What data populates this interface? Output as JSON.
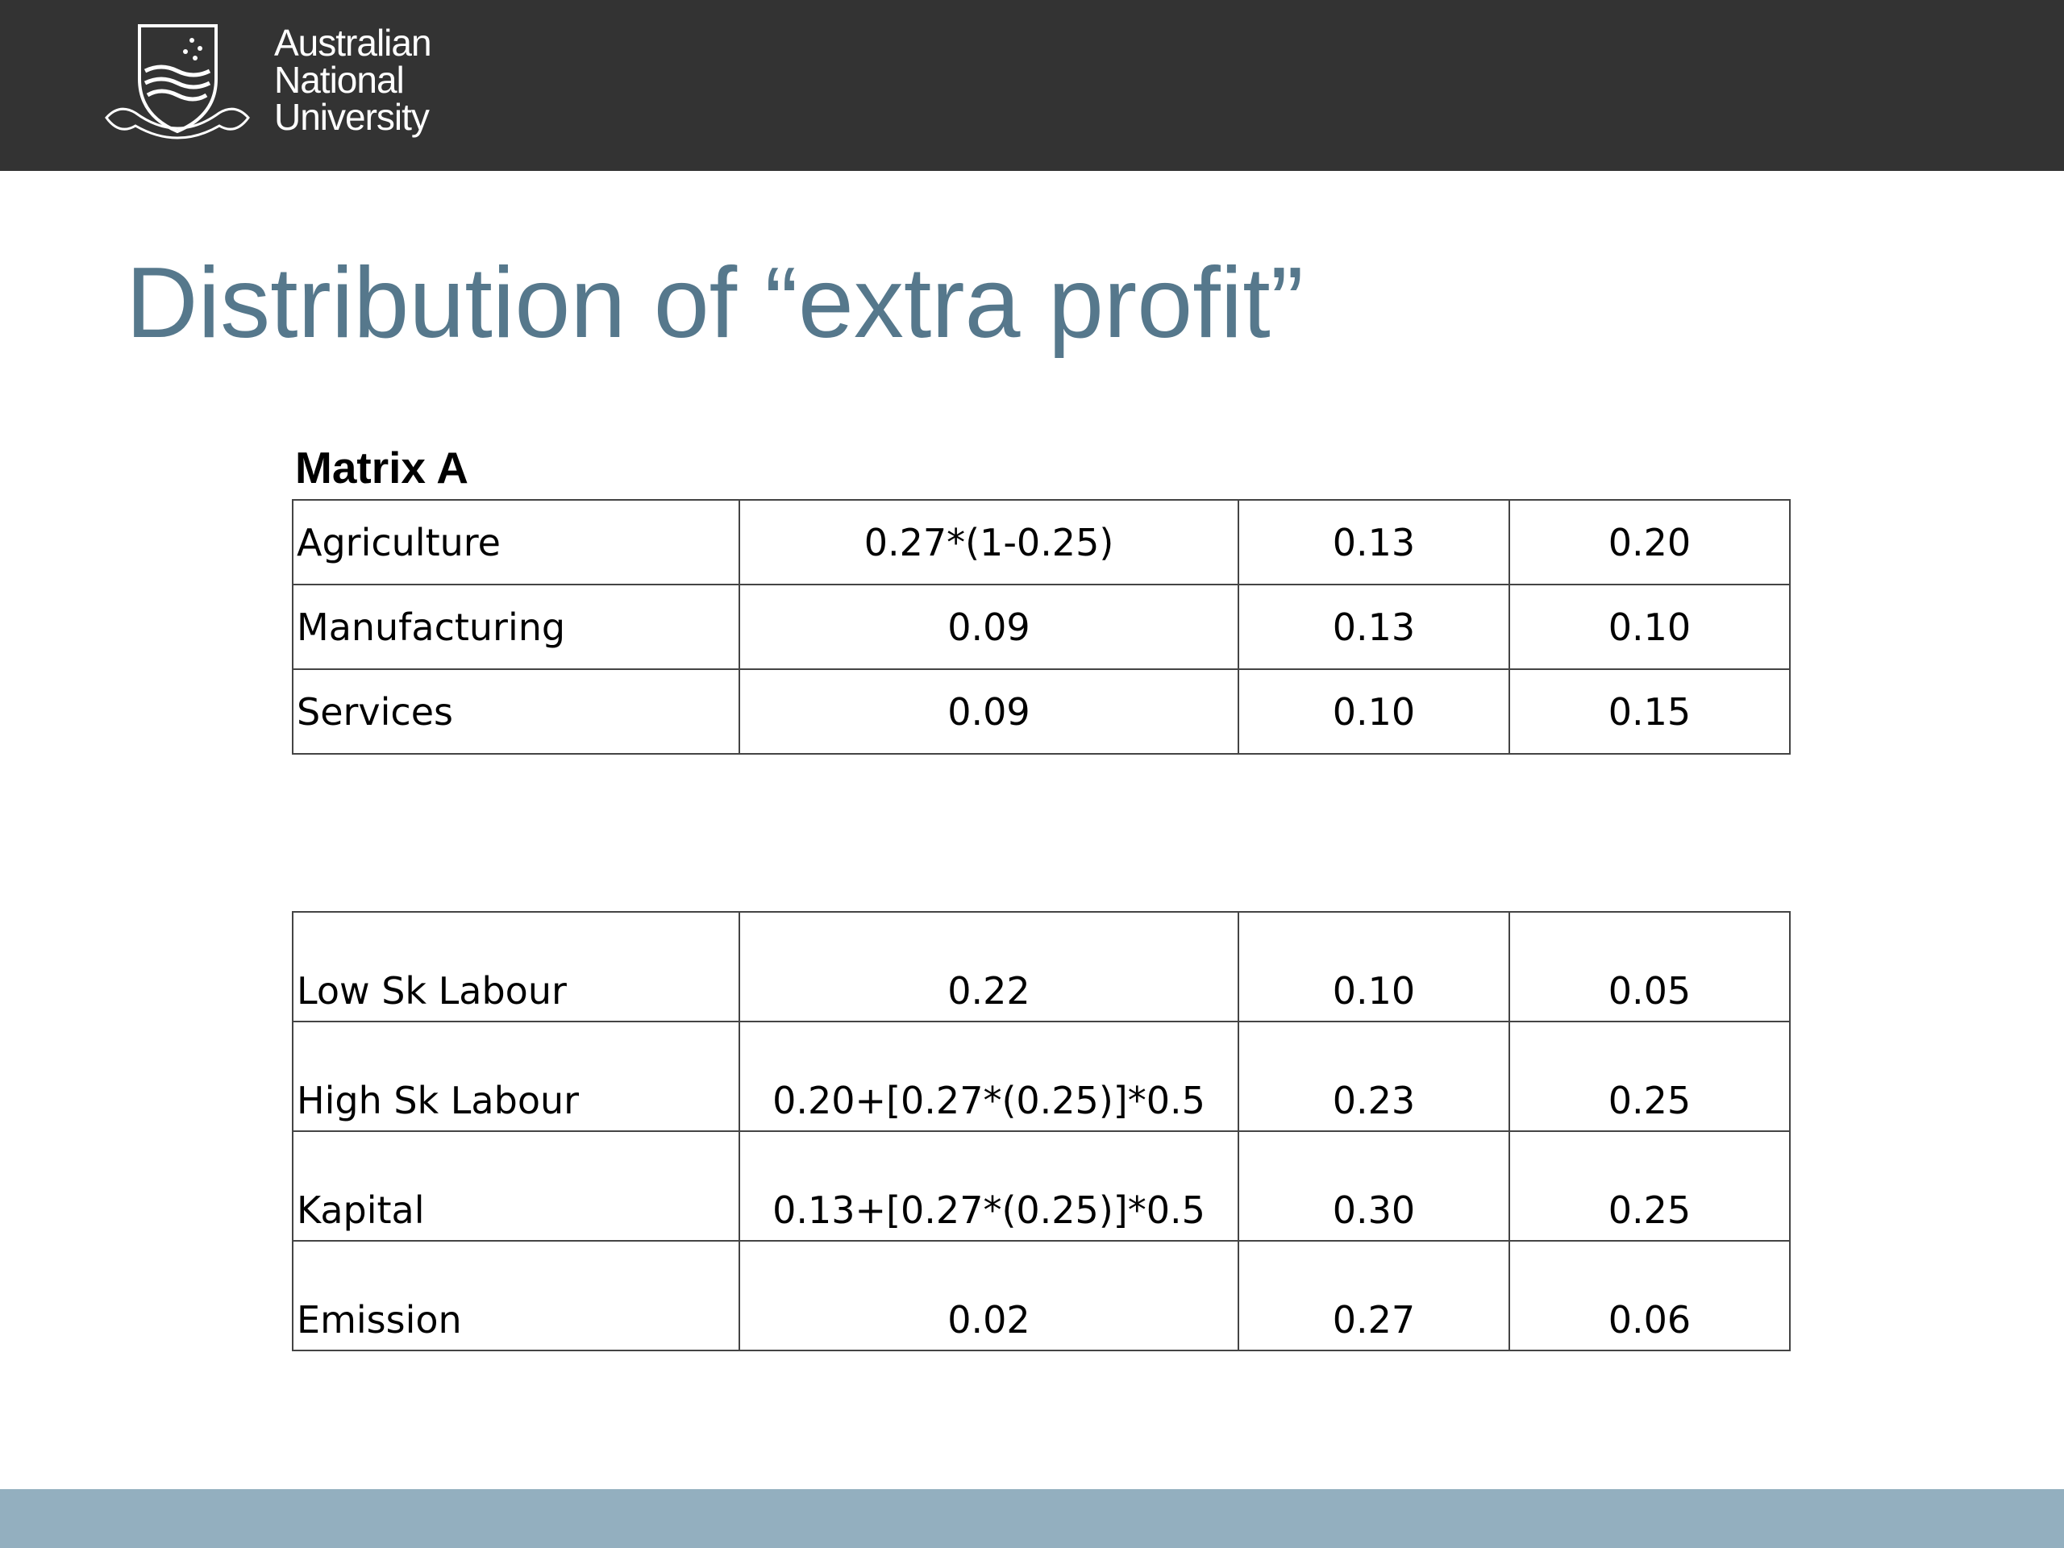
{
  "header": {
    "logo_text": [
      "Australian",
      "National",
      "University"
    ]
  },
  "title": "Distribution of “extra profit”",
  "table1": {
    "label": "Matrix A",
    "rows": [
      [
        "Agriculture",
        "0.27*(1-0.25)",
        "0.13",
        "0.20"
      ],
      [
        "Manufacturing",
        "0.09",
        "0.13",
        "0.10"
      ],
      [
        "Services",
        "0.09",
        "0.10",
        "0.15"
      ]
    ]
  },
  "table2": {
    "rows": [
      [
        "Low Sk Labour",
        "0.22",
        "0.10",
        "0.05"
      ],
      [
        "High Sk Labour",
        "0.20+[0.27*(0.25)]*0.5",
        "0.23",
        "0.25"
      ],
      [
        "Kapital",
        "0.13+[0.27*(0.25)]*0.5",
        "0.30",
        "0.25"
      ],
      [
        "Emission",
        "0.02",
        "0.27",
        "0.06"
      ]
    ]
  }
}
